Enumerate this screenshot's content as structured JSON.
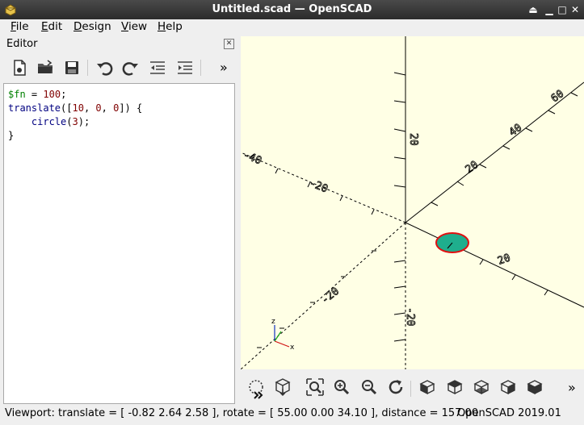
{
  "window": {
    "title": "Untitled.scad — OpenSCAD"
  },
  "menubar": {
    "items": [
      {
        "mnemonic": "F",
        "rest": "ile"
      },
      {
        "mnemonic": "E",
        "rest": "dit"
      },
      {
        "mnemonic": "D",
        "rest": "esign"
      },
      {
        "mnemonic": "V",
        "rest": "iew"
      },
      {
        "mnemonic": "H",
        "rest": "elp"
      }
    ]
  },
  "editor": {
    "dock_title": "Editor",
    "toolbar_icons": [
      "new-file-icon",
      "open-file-icon",
      "save-icon",
      "undo-icon",
      "redo-icon",
      "unindent-icon",
      "indent-icon",
      "overflow-chevron-icon"
    ],
    "overflow_label": "»",
    "code": {
      "line1": {
        "var": "$fn",
        "op": " = ",
        "num": "100",
        "end": ";"
      },
      "line2": {
        "fn": "translate",
        "open": "([",
        "n1": "10",
        "c1": ", ",
        "n2": "0",
        "c2": ", ",
        "n3": "0",
        "close": "]) {"
      },
      "line3": {
        "indent": "    ",
        "fn": "circle",
        "open": "(",
        "n": "3",
        "close": ");"
      },
      "line4": {
        "text": "}"
      }
    }
  },
  "viewport": {
    "axis_ticks": {
      "z_pos": "20",
      "z_neg": "-20",
      "x_pos": "20",
      "y_pos_a": "20",
      "y_pos_b": "40",
      "y_pos_c": "60",
      "x_neg_a": "-20",
      "x_neg_b": "-40",
      "y_neg": "-20"
    },
    "colors": {
      "background": "#ffffe5",
      "circle_fill": "#1fae8d",
      "circle_edge": "#e01010"
    },
    "gizmo_labels": {
      "z": "z",
      "x": "x"
    }
  },
  "view_toolbar": {
    "icons": [
      "preview-icon",
      "render-icon",
      "view-all-icon",
      "zoom-in-icon",
      "zoom-out-icon",
      "reset-view-icon",
      "view-right-icon",
      "view-top-icon",
      "view-bottom-icon",
      "view-left-icon",
      "view-front-icon"
    ],
    "overflow_label": "»"
  },
  "statusbar": {
    "viewport_info": "Viewport: translate = [ -0.82 2.64 2.58 ], rotate = [ 55.00 0.00 34.10 ], distance = 157.00",
    "version": "OpenSCAD 2019.01"
  }
}
